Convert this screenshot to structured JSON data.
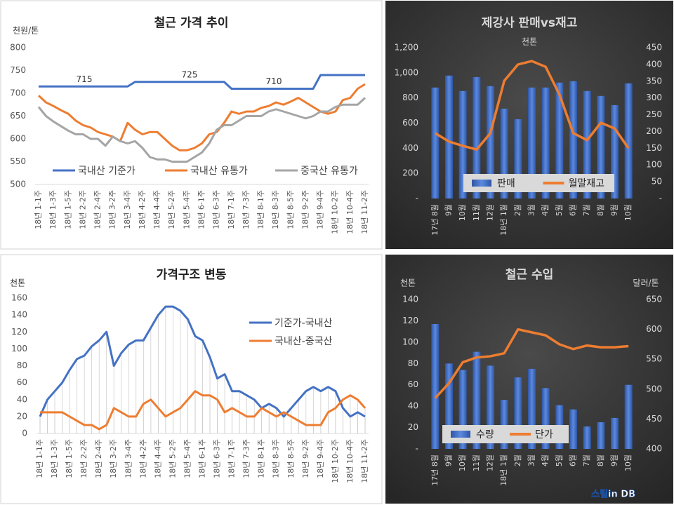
{
  "chart_data": [
    {
      "type": "line",
      "title": "철근 가격 추이",
      "ylabel": "천원/톤",
      "categories": [
        "18년 1-1주",
        null,
        "18년 1-3주",
        null,
        "18년 1-5주",
        null,
        "18년 2-2주",
        null,
        "18년 2-4주",
        null,
        "18년 3-2주",
        null,
        "18년 3-4주",
        null,
        "18년 4-2주",
        null,
        "18년 4-4주",
        null,
        "18년 5-2주",
        null,
        "18년 5-4주",
        null,
        "18년 6-1주",
        null,
        "18년 6-3주",
        null,
        "18년 7-1주",
        null,
        "18년 7-3주",
        null,
        "18년 8-1주",
        null,
        "18년 8-3주",
        null,
        "18년 8-5주",
        null,
        "18년 9-2주",
        null,
        "18년 9-4주",
        null,
        "18년 10-2주",
        null,
        "18년 10-4주",
        null,
        "18년 11-2주"
      ],
      "ylim": [
        500,
        800
      ],
      "yticks": [
        500,
        550,
        600,
        650,
        700,
        750,
        800
      ],
      "grid": false,
      "legend": "bottom",
      "annotations": [
        "715",
        "725",
        "710"
      ],
      "series": [
        {
          "name": "국내산 기준가",
          "color": "#4472c4",
          "values": [
            715,
            715,
            715,
            715,
            715,
            715,
            715,
            715,
            715,
            715,
            715,
            715,
            715,
            725,
            725,
            725,
            725,
            725,
            725,
            725,
            725,
            725,
            725,
            725,
            725,
            725,
            710,
            710,
            710,
            710,
            710,
            710,
            710,
            710,
            710,
            710,
            710,
            710,
            740,
            740,
            740,
            740,
            740,
            740,
            740
          ]
        },
        {
          "name": "국내산 유통가",
          "color": "#ed7d31",
          "values": [
            695,
            680,
            672,
            663,
            655,
            640,
            630,
            625,
            615,
            610,
            605,
            595,
            635,
            620,
            610,
            615,
            615,
            600,
            585,
            575,
            575,
            580,
            590,
            610,
            615,
            635,
            660,
            655,
            660,
            660,
            668,
            672,
            680,
            675,
            682,
            690,
            680,
            670,
            660,
            655,
            660,
            685,
            690,
            710,
            720
          ]
        },
        {
          "name": "중국산 유통가",
          "color": "#a5a5a5",
          "values": [
            670,
            650,
            638,
            628,
            618,
            610,
            610,
            600,
            600,
            585,
            605,
            595,
            590,
            595,
            580,
            560,
            555,
            555,
            550,
            550,
            550,
            560,
            570,
            590,
            620,
            630,
            630,
            640,
            650,
            650,
            650,
            660,
            665,
            660,
            655,
            650,
            645,
            650,
            660,
            660,
            670,
            675,
            675,
            675,
            690
          ]
        }
      ]
    },
    {
      "type": "combo",
      "title": "제강사 판매vs재고",
      "subtitle": "천톤",
      "categories": [
        "17년 8월",
        "9월",
        "10월",
        "11월",
        "12월",
        "18년 1월",
        "2월",
        "3월",
        "4월",
        "5월",
        "6월",
        "7월",
        "8월",
        "9월",
        "10월"
      ],
      "ylim": [
        0,
        1200
      ],
      "yticks": [
        {
          "value": 0,
          "label": "-"
        },
        200,
        400,
        600,
        800,
        {
          "value": 1000,
          "label": "1,000"
        },
        {
          "value": 1200,
          "label": "1,200"
        }
      ],
      "y2lim": [
        0,
        450
      ],
      "y2ticks": [
        {
          "value": 0,
          "label": "-"
        },
        50,
        100,
        150,
        200,
        250,
        300,
        350,
        400,
        450
      ],
      "legend": "bottom",
      "series": [
        {
          "name": "판매",
          "type": "bar",
          "color": "#4472c4",
          "values": [
            883,
            978,
            855,
            966,
            894,
            715,
            631,
            883,
            883,
            922,
            933,
            855,
            816,
            743,
            916
          ]
        },
        {
          "name": "월말재고",
          "type": "line",
          "axis": "y2",
          "color": "#ed7d31",
          "values": [
            195,
            170,
            157,
            146,
            195,
            351,
            400,
            410,
            393,
            310,
            195,
            174,
            226,
            209,
            150
          ]
        }
      ]
    },
    {
      "type": "line",
      "title": "가격구조 변동",
      "ylabel": "천톤",
      "categories": [
        "18년 1-1주",
        null,
        "18년 1-3주",
        null,
        "18년 1-5주",
        null,
        "18년 2-2주",
        null,
        "18년 2-4주",
        null,
        "18년 3-2주",
        null,
        "18년 3-4주",
        null,
        "18년 4-2주",
        null,
        "18년 4-4주",
        null,
        "18년 5-2주",
        null,
        "18년 5-4주",
        null,
        "18년 6-1주",
        null,
        "18년 6-3주",
        null,
        "18년 7-1주",
        null,
        "18년 7-3주",
        null,
        "18년 8-1주",
        null,
        "18년 8-3주",
        null,
        "18년 8-5주",
        null,
        "18년 9-2주",
        null,
        "18년 9-4주",
        null,
        "18년 10-2주",
        null,
        "18년 10-4주",
        null,
        "18년 11-2주"
      ],
      "ylim": [
        0,
        160
      ],
      "yticks": [
        0,
        20,
        40,
        60,
        80,
        100,
        120,
        140,
        160
      ],
      "grid": false,
      "drop_lines": true,
      "legend": "right",
      "series": [
        {
          "name": "기준가-국내산",
          "color": "#4472c4",
          "values": [
            20,
            40,
            50,
            60,
            75,
            88,
            92,
            103,
            110,
            120,
            80,
            95,
            105,
            110,
            110,
            125,
            140,
            150,
            150,
            145,
            135,
            115,
            110,
            90,
            65,
            70,
            50,
            50,
            45,
            40,
            30,
            35,
            30,
            20,
            30,
            40,
            50,
            55,
            50,
            55,
            50,
            30,
            20,
            25,
            20
          ]
        },
        {
          "name": "국내산-중국산",
          "color": "#ed7d31",
          "values": [
            25,
            25,
            25,
            25,
            20,
            15,
            10,
            10,
            5,
            10,
            30,
            25,
            20,
            20,
            35,
            40,
            30,
            20,
            25,
            30,
            40,
            50,
            45,
            45,
            40,
            25,
            30,
            25,
            20,
            20,
            30,
            25,
            20,
            25,
            20,
            15,
            10,
            10,
            10,
            25,
            30,
            40,
            45,
            40,
            30
          ]
        }
      ]
    },
    {
      "type": "combo",
      "title": "철근 수입",
      "ylabel": "천톤",
      "y2label": "달러/톤",
      "categories": [
        "17년 8월",
        "9월",
        "10월",
        "11월",
        "12월",
        "18년 1월",
        "2월",
        "3월",
        "4월",
        "5월",
        "6월",
        "7월",
        "8월",
        "9월",
        "10월"
      ],
      "ylim": [
        0,
        140
      ],
      "yticks": [
        {
          "value": 0,
          "label": "-"
        },
        20,
        40,
        60,
        80,
        100,
        120,
        140
      ],
      "y2lim": [
        400,
        650
      ],
      "y2ticks": [
        400,
        450,
        500,
        550,
        600,
        650
      ],
      "legend": "bottom",
      "logo": "스틸in DB",
      "series": [
        {
          "name": "수량",
          "type": "bar",
          "color": "#4472c4",
          "values": [
            117,
            80,
            74,
            91,
            78,
            46,
            67,
            75,
            57,
            41,
            37,
            21,
            25,
            29,
            60
          ]
        },
        {
          "name": "단가",
          "type": "line",
          "axis": "y2",
          "color": "#ed7d31",
          "values": [
            485,
            510,
            545,
            553,
            555,
            560,
            600,
            595,
            590,
            575,
            567,
            573,
            570,
            570,
            572
          ]
        }
      ]
    }
  ]
}
